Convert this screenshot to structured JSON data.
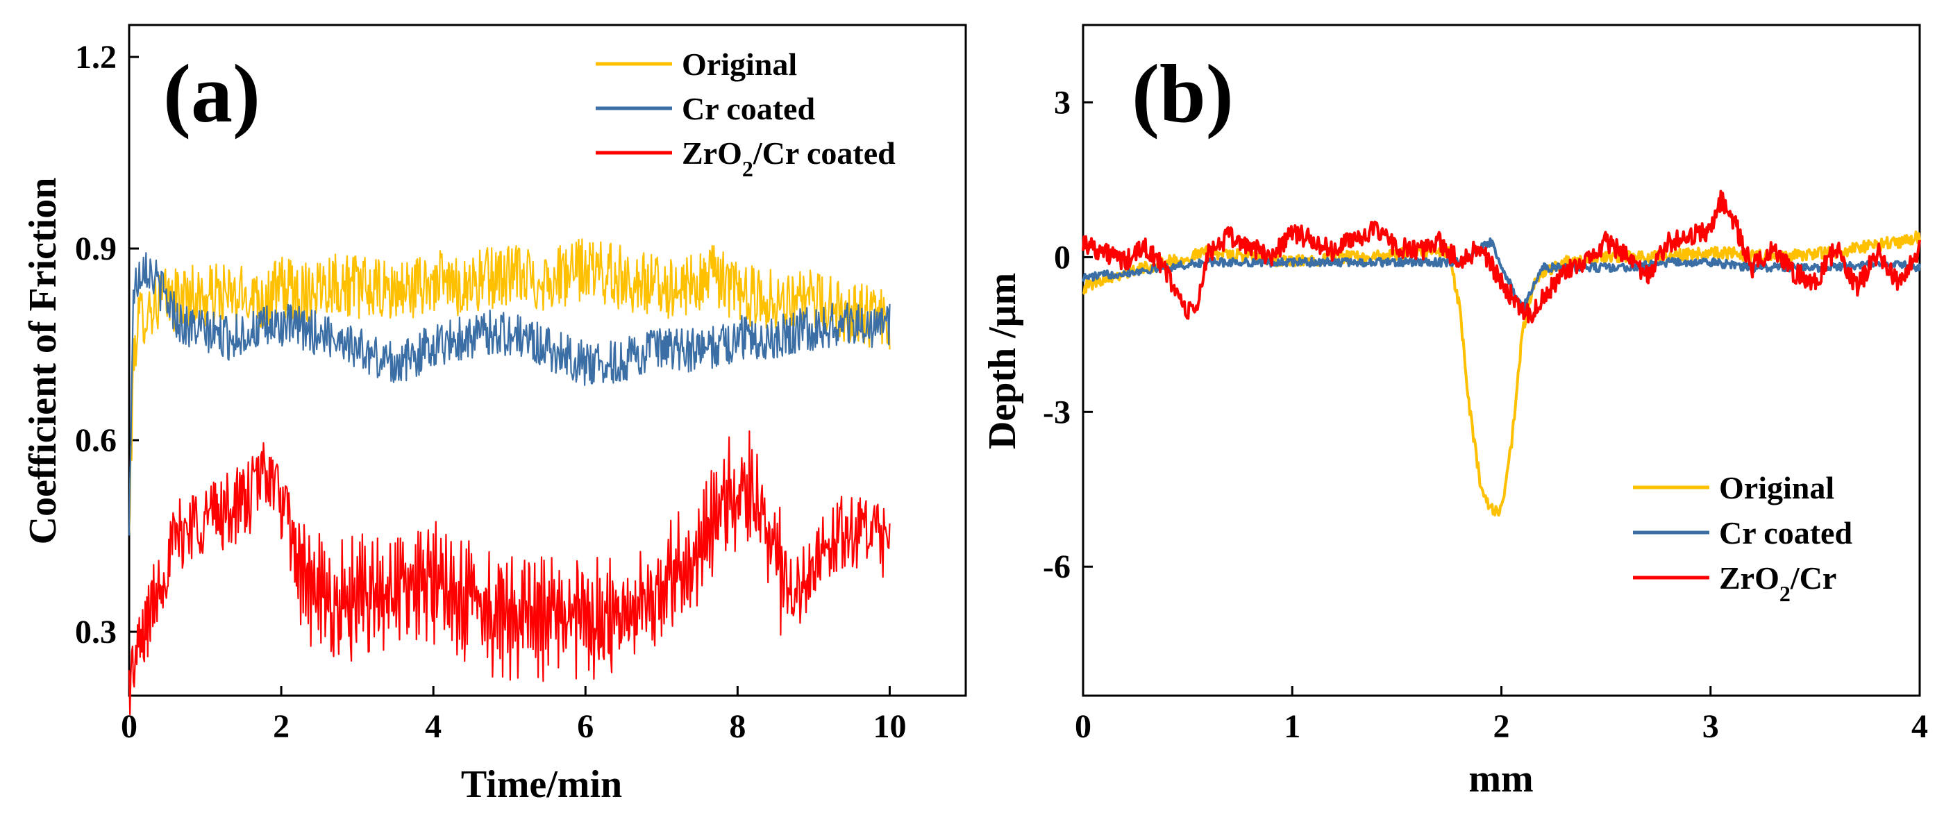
{
  "colors": {
    "original": "#FFC000",
    "cr": "#3A6EA5",
    "zro2": "#FF0000"
  },
  "chart_data": [
    {
      "type": "line",
      "panel": "(a)",
      "xlabel": "Time/min",
      "ylabel": "Coefficient of Friction",
      "xlim": [
        0,
        11
      ],
      "ylim": [
        0.2,
        1.25
      ],
      "xticks": [
        0,
        2,
        4,
        6,
        8,
        10
      ],
      "xtick_labels": [
        "0",
        "2",
        "4",
        "6",
        "8",
        "10"
      ],
      "yticks": [
        0.3,
        0.6,
        0.9,
        1.2
      ],
      "ytick_labels": [
        "0.3",
        "0.6",
        "0.9",
        "1.2"
      ],
      "legend_position": "top-right",
      "series": [
        {
          "name": "Original",
          "legend_main": "Original",
          "legend_sub": "",
          "legend_tail": "",
          "color_key": "original",
          "x": [
            0,
            0.05,
            0.1,
            0.2,
            0.4,
            0.6,
            0.8,
            1.0,
            1.2,
            1.4,
            1.6,
            1.8,
            2.0,
            2.3,
            2.6,
            3.0,
            3.4,
            3.8,
            4.0,
            4.3,
            4.6,
            5.0,
            5.4,
            5.8,
            6.0,
            6.3,
            6.6,
            7.0,
            7.4,
            7.7,
            8.0,
            8.4,
            8.8,
            9.2,
            9.6,
            10.0
          ],
          "y": [
            0.44,
            0.7,
            0.78,
            0.8,
            0.82,
            0.82,
            0.83,
            0.82,
            0.83,
            0.82,
            0.83,
            0.82,
            0.84,
            0.83,
            0.85,
            0.84,
            0.83,
            0.84,
            0.85,
            0.84,
            0.85,
            0.86,
            0.85,
            0.86,
            0.87,
            0.86,
            0.85,
            0.84,
            0.84,
            0.86,
            0.83,
            0.82,
            0.82,
            0.81,
            0.8,
            0.78
          ],
          "noise": 0.05
        },
        {
          "name": "Cr coated",
          "legend_main": "Cr coated",
          "legend_sub": "",
          "legend_tail": "",
          "color_key": "cr",
          "x": [
            0,
            0.05,
            0.1,
            0.2,
            0.3,
            0.5,
            0.7,
            1.0,
            1.3,
            1.6,
            2.0,
            2.4,
            2.8,
            3.2,
            3.6,
            4.0,
            4.4,
            4.8,
            5.2,
            5.6,
            6.0,
            6.4,
            6.8,
            7.2,
            7.6,
            8.0,
            8.4,
            8.8,
            9.2,
            9.6,
            10.0
          ],
          "y": [
            0.44,
            0.82,
            0.85,
            0.88,
            0.86,
            0.82,
            0.78,
            0.77,
            0.76,
            0.77,
            0.78,
            0.77,
            0.76,
            0.73,
            0.72,
            0.75,
            0.76,
            0.77,
            0.76,
            0.74,
            0.72,
            0.72,
            0.74,
            0.74,
            0.74,
            0.76,
            0.76,
            0.77,
            0.78,
            0.78,
            0.78
          ],
          "noise": 0.035
        },
        {
          "name": "ZrO2/Cr coated",
          "legend_main": "ZrO",
          "legend_sub": "2",
          "legend_tail": "/Cr coated",
          "color_key": "zro2",
          "x": [
            0,
            0.2,
            0.4,
            0.6,
            0.8,
            1.0,
            1.3,
            1.6,
            1.8,
            2.0,
            2.2,
            2.4,
            2.6,
            2.9,
            3.2,
            3.5,
            3.8,
            4.0,
            4.3,
            4.6,
            5.0,
            5.4,
            5.8,
            6.2,
            6.6,
            7.0,
            7.3,
            7.6,
            7.9,
            8.1,
            8.4,
            8.6,
            8.8,
            9.0,
            9.3,
            9.6,
            10.0
          ],
          "y": [
            0.22,
            0.3,
            0.38,
            0.44,
            0.47,
            0.48,
            0.49,
            0.51,
            0.56,
            0.5,
            0.42,
            0.36,
            0.34,
            0.34,
            0.35,
            0.36,
            0.37,
            0.38,
            0.36,
            0.34,
            0.33,
            0.33,
            0.33,
            0.32,
            0.33,
            0.36,
            0.4,
            0.45,
            0.5,
            0.53,
            0.46,
            0.38,
            0.36,
            0.42,
            0.45,
            0.46,
            0.43
          ],
          "noise": 0.06
        }
      ]
    },
    {
      "type": "line",
      "panel": "(b)",
      "xlabel": "mm",
      "ylabel": "Depth /μm",
      "xlim": [
        0,
        4
      ],
      "ylim": [
        -8.5,
        4.5
      ],
      "xticks": [
        0,
        1,
        2,
        3,
        4
      ],
      "xtick_labels": [
        "0",
        "1",
        "2",
        "3",
        "4"
      ],
      "yticks": [
        -6,
        -3,
        0,
        3
      ],
      "ytick_labels": [
        "-6",
        "-3",
        "0",
        "3"
      ],
      "legend_position": "bottom-right",
      "series": [
        {
          "name": "Original",
          "legend_main": "Original",
          "legend_sub": "",
          "legend_tail": "",
          "color_key": "original",
          "x": [
            0,
            0.1,
            0.2,
            0.4,
            0.6,
            0.8,
            1.0,
            1.2,
            1.4,
            1.6,
            1.75,
            1.8,
            1.85,
            1.9,
            1.95,
            2.0,
            2.05,
            2.1,
            2.15,
            2.2,
            2.3,
            2.5,
            2.7,
            3.0,
            3.3,
            3.6,
            3.9,
            4.0
          ],
          "y": [
            -0.6,
            -0.4,
            -0.3,
            -0.1,
            0.1,
            0.0,
            -0.1,
            0.0,
            0.0,
            0.1,
            0.1,
            -1.0,
            -3.0,
            -4.4,
            -4.9,
            -4.9,
            -3.6,
            -1.5,
            -0.6,
            -0.3,
            -0.1,
            0.0,
            0.0,
            0.1,
            0.0,
            0.1,
            0.3,
            0.4
          ],
          "noise": 0.12
        },
        {
          "name": "Cr coated",
          "legend_main": "Cr coated",
          "legend_sub": "",
          "legend_tail": "",
          "color_key": "cr",
          "x": [
            0,
            0.2,
            0.4,
            0.6,
            0.8,
            1.0,
            1.2,
            1.4,
            1.6,
            1.8,
            1.95,
            2.0,
            2.05,
            2.1,
            2.2,
            2.4,
            2.6,
            2.8,
            3.0,
            3.2,
            3.4,
            3.6,
            3.8,
            4.0
          ],
          "y": [
            -0.4,
            -0.3,
            -0.2,
            -0.1,
            -0.1,
            -0.1,
            -0.1,
            -0.1,
            -0.1,
            -0.1,
            0.3,
            -0.2,
            -0.6,
            -1.0,
            -0.2,
            -0.2,
            -0.2,
            -0.1,
            -0.1,
            -0.2,
            -0.2,
            -0.2,
            -0.1,
            -0.2
          ],
          "noise": 0.08
        },
        {
          "name": "ZrO2/Cr",
          "legend_main": "ZrO",
          "legend_sub": "2",
          "legend_tail": "/Cr",
          "color_key": "zro2",
          "x": [
            0,
            0.1,
            0.2,
            0.3,
            0.4,
            0.5,
            0.55,
            0.6,
            0.7,
            0.8,
            0.9,
            1.0,
            1.1,
            1.2,
            1.3,
            1.4,
            1.5,
            1.6,
            1.7,
            1.8,
            1.9,
            2.0,
            2.1,
            2.15,
            2.2,
            2.3,
            2.4,
            2.5,
            2.6,
            2.7,
            2.8,
            2.9,
            3.0,
            3.05,
            3.1,
            3.2,
            3.3,
            3.4,
            3.5,
            3.6,
            3.7,
            3.8,
            3.9,
            4.0
          ],
          "y": [
            0.3,
            0.1,
            -0.1,
            0.2,
            -0.3,
            -1.1,
            -0.9,
            0.1,
            0.4,
            0.2,
            0.0,
            0.5,
            0.3,
            0.1,
            0.4,
            0.5,
            0.2,
            0.1,
            0.3,
            -0.1,
            0.2,
            -0.5,
            -1.0,
            -1.1,
            -0.8,
            -0.3,
            -0.1,
            0.3,
            0.0,
            -0.4,
            0.3,
            0.4,
            0.5,
            1.1,
            0.8,
            -0.2,
            0.2,
            -0.3,
            -0.5,
            0.2,
            -0.6,
            0.1,
            -0.5,
            0.2
          ],
          "noise": 0.2
        }
      ]
    }
  ]
}
